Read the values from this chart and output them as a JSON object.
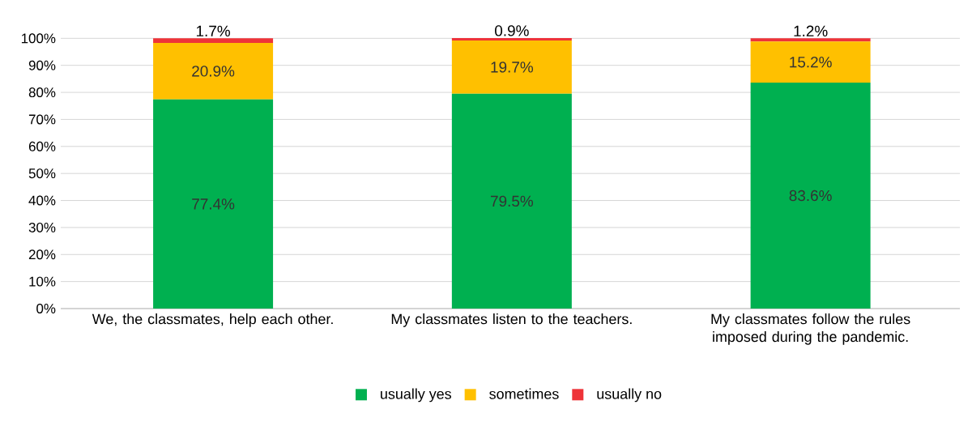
{
  "chart_data": {
    "type": "bar",
    "stacked": true,
    "categories": [
      "We, the classmates, help each other.",
      "My classmates listen to the teachers.",
      "My classmates follow the rules imposed during the pandemic."
    ],
    "series": [
      {
        "name": "usually yes",
        "color": "#00b050",
        "values": [
          77.4,
          79.5,
          83.6
        ],
        "value_labels": [
          "77.4%",
          "79.5%",
          "83.6%"
        ]
      },
      {
        "name": "sometimes",
        "color": "#ffc000",
        "values": [
          20.9,
          19.7,
          15.2
        ],
        "value_labels": [
          "20.9%",
          "19.7%",
          "15.2%"
        ]
      },
      {
        "name": "usually no",
        "color": "#ee3338",
        "values": [
          1.7,
          0.9,
          1.2
        ],
        "value_labels": [
          "1.7%",
          "0.9%",
          "1.2%"
        ]
      }
    ],
    "ylim": [
      0,
      100.1
    ],
    "yticks": [
      {
        "value": 0,
        "label": "0%"
      },
      {
        "value": 10,
        "label": "10%"
      },
      {
        "value": 20,
        "label": "20%"
      },
      {
        "value": 30,
        "label": "30%"
      },
      {
        "value": 40,
        "label": "40%"
      },
      {
        "value": 50,
        "label": "50%"
      },
      {
        "value": 60,
        "label": "60%"
      },
      {
        "value": 70,
        "label": "70%"
      },
      {
        "value": 80,
        "label": "80%"
      },
      {
        "value": 90,
        "label": "90%"
      },
      {
        "value": 100,
        "label": "100%"
      }
    ],
    "grid": "y",
    "legend": "bottom"
  }
}
